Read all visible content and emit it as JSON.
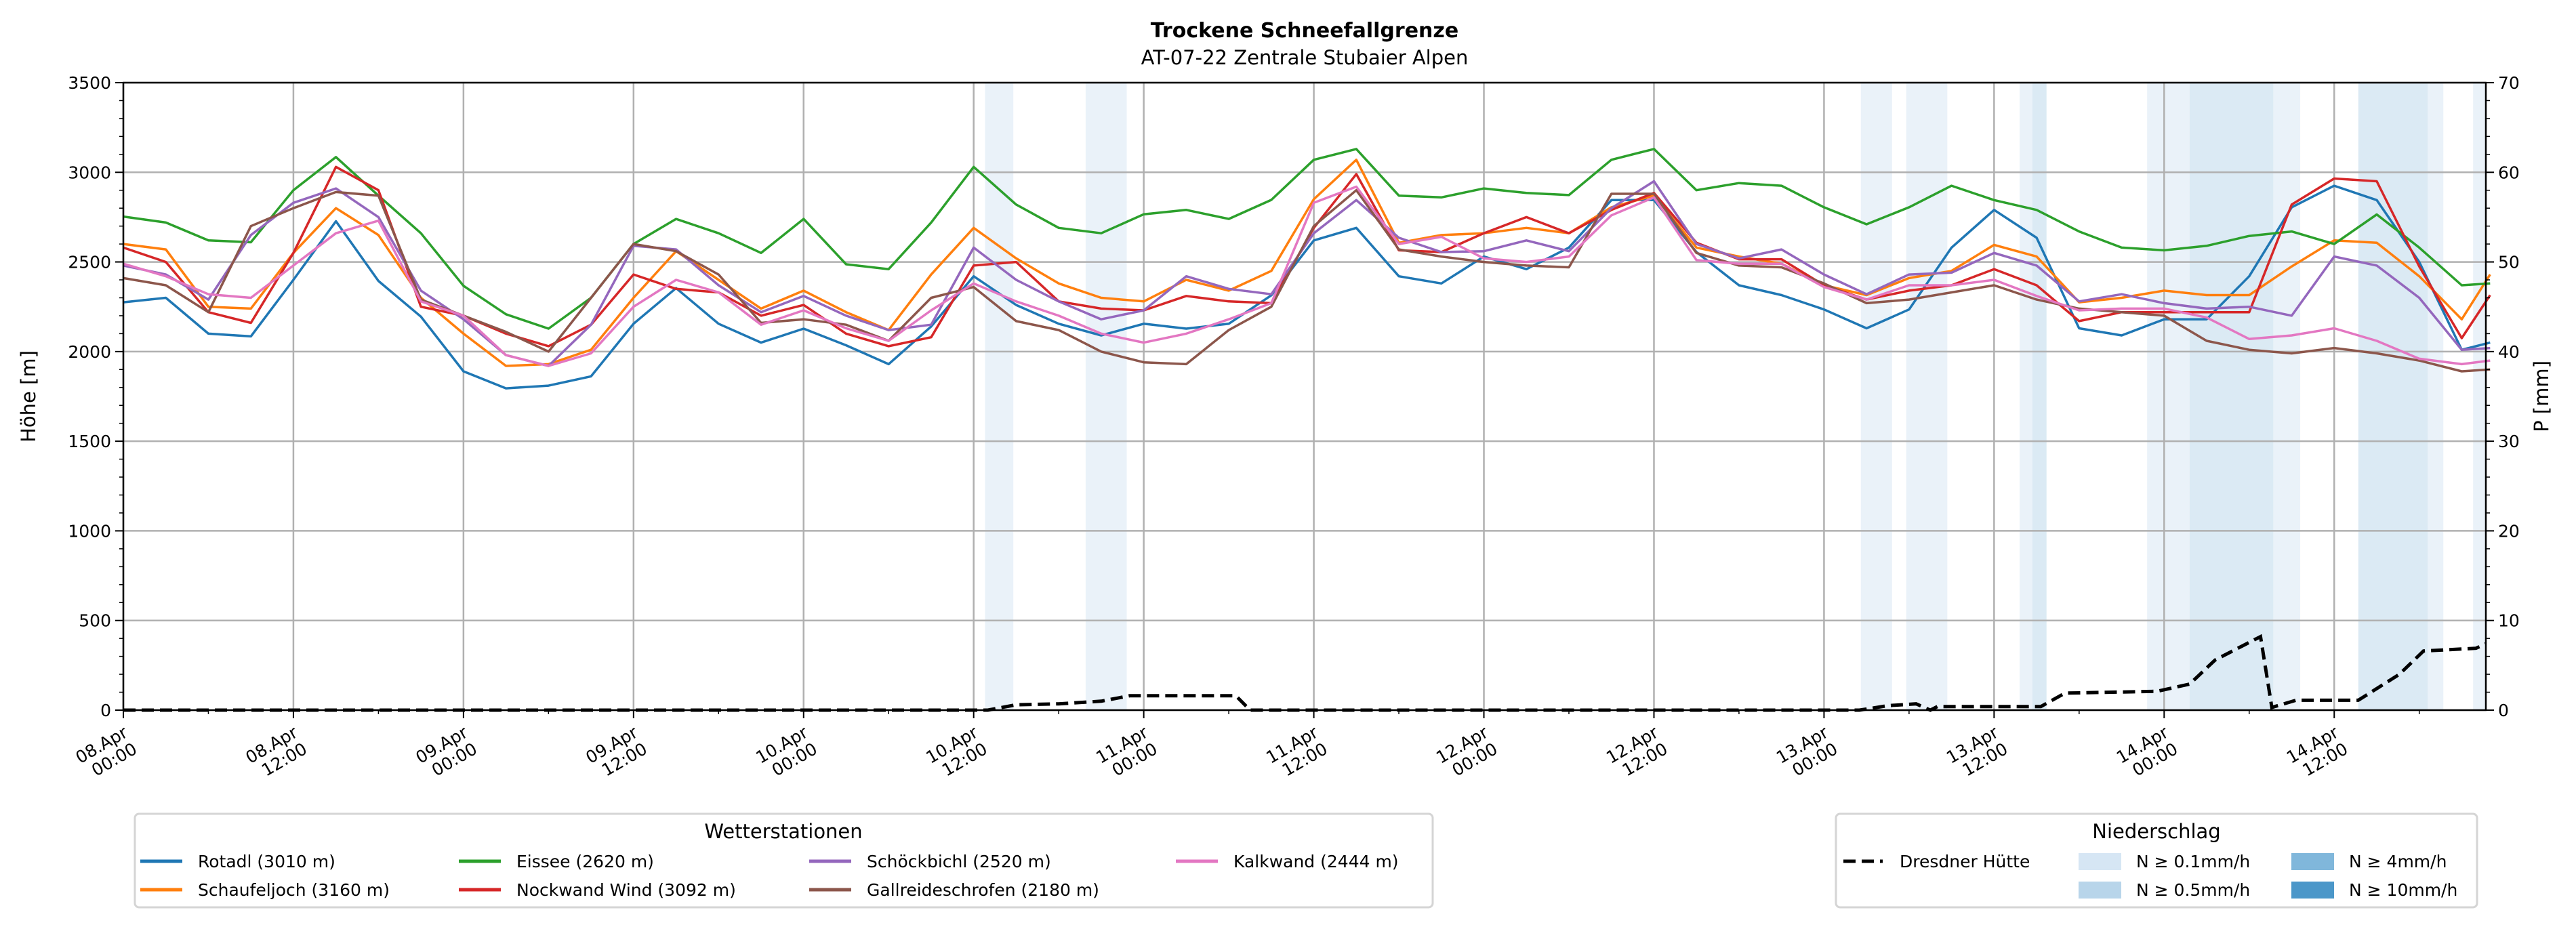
{
  "chart_data": {
    "type": "line",
    "title": "Trockene Schneefallgrenze",
    "subtitle": "AT-07-22 Zentrale Stubaier Alpen",
    "ylabel": "Höhe [m]",
    "ylabel_right": "P [mm]",
    "ylim": [
      0,
      3500
    ],
    "ylim_right": [
      0,
      70
    ],
    "xlim_hours": [
      0,
      166.7
    ],
    "grid": true,
    "yticks": [
      0,
      500,
      1000,
      1500,
      2000,
      2500,
      3000,
      3500
    ],
    "yticks_right": [
      0,
      10,
      20,
      30,
      40,
      50,
      60,
      70
    ],
    "xticks": [
      {
        "hour": 0,
        "date": "08.Apr",
        "time": "00:00"
      },
      {
        "hour": 12,
        "date": "08.Apr",
        "time": "12:00"
      },
      {
        "hour": 24,
        "date": "09.Apr",
        "time": "00:00"
      },
      {
        "hour": 36,
        "date": "09.Apr",
        "time": "12:00"
      },
      {
        "hour": 48,
        "date": "10.Apr",
        "time": "00:00"
      },
      {
        "hour": 60,
        "date": "10.Apr",
        "time": "12:00"
      },
      {
        "hour": 72,
        "date": "11.Apr",
        "time": "00:00"
      },
      {
        "hour": 84,
        "date": "11.Apr",
        "time": "12:00"
      },
      {
        "hour": 96,
        "date": "12.Apr",
        "time": "00:00"
      },
      {
        "hour": 108,
        "date": "12.Apr",
        "time": "12:00"
      },
      {
        "hour": 120,
        "date": "13.Apr",
        "time": "00:00"
      },
      {
        "hour": 132,
        "date": "13.Apr",
        "time": "12:00"
      },
      {
        "hour": 144,
        "date": "14.Apr",
        "time": "00:00"
      },
      {
        "hour": 156,
        "date": "14.Apr",
        "time": "12:00"
      }
    ],
    "x_hours": [
      0,
      3,
      6,
      9,
      12,
      15,
      18,
      21,
      24,
      27,
      30,
      33,
      36,
      39,
      42,
      45,
      48,
      51,
      54,
      57,
      60,
      63,
      66,
      69,
      72,
      75,
      78,
      81,
      84,
      87,
      90,
      93,
      96,
      99,
      102,
      105,
      108,
      111,
      114,
      117,
      120,
      123,
      126,
      129,
      132,
      135,
      138,
      141,
      144,
      147,
      150,
      153,
      156,
      159,
      162,
      165,
      167
    ],
    "series": [
      {
        "name": "Rotadl (3010 m)",
        "color": "#1f77b4",
        "values": [
          2275,
          2300,
          2100,
          2085,
          2400,
          2727,
          2394,
          2195,
          1890,
          1795,
          1810,
          1862,
          2155,
          2354,
          2155,
          2050,
          2128,
          2035,
          1930,
          2140,
          2420,
          2260,
          2155,
          2090,
          2155,
          2128,
          2155,
          2314,
          2620,
          2690,
          2420,
          2380,
          2530,
          2460,
          2580,
          2845,
          2845,
          2555,
          2370,
          2315,
          2235,
          2130,
          2235,
          2580,
          2790,
          2635,
          2130,
          2090,
          2180,
          2180,
          2420,
          2805,
          2925,
          2845,
          2500,
          2010,
          2050
        ]
      },
      {
        "name": "Schaufeljoch (3160 m)",
        "color": "#ff7f0e",
        "values": [
          2600,
          2570,
          2250,
          2240,
          2550,
          2800,
          2650,
          2300,
          2100,
          1920,
          1930,
          2010,
          2300,
          2560,
          2400,
          2240,
          2340,
          2220,
          2120,
          2430,
          2690,
          2520,
          2380,
          2300,
          2280,
          2400,
          2340,
          2450,
          2850,
          3070,
          2607,
          2650,
          2660,
          2690,
          2660,
          2805,
          2870,
          2580,
          2530,
          2490,
          2370,
          2315,
          2410,
          2450,
          2595,
          2530,
          2275,
          2300,
          2340,
          2315,
          2315,
          2475,
          2620,
          2607,
          2420,
          2180,
          2430
        ]
      },
      {
        "name": "Eissee (2620 m)",
        "color": "#2ca02c",
        "values": [
          2753,
          2720,
          2620,
          2610,
          2900,
          3085,
          2870,
          2660,
          2367,
          2208,
          2128,
          2300,
          2600,
          2740,
          2660,
          2550,
          2740,
          2487,
          2460,
          2720,
          3030,
          2820,
          2690,
          2660,
          2766,
          2790,
          2740,
          2846,
          3070,
          3130,
          2870,
          2860,
          2910,
          2885,
          2873,
          3070,
          3130,
          2900,
          2940,
          2925,
          2805,
          2710,
          2805,
          2925,
          2845,
          2790,
          2670,
          2580,
          2565,
          2590,
          2645,
          2670,
          2600,
          2765,
          2580,
          2370,
          2380
        ]
      },
      {
        "name": "Nockwand Wind (3092 m)",
        "color": "#d62728",
        "values": [
          2580,
          2500,
          2220,
          2160,
          2550,
          3030,
          2900,
          2250,
          2200,
          2100,
          2030,
          2150,
          2430,
          2350,
          2330,
          2200,
          2260,
          2100,
          2030,
          2080,
          2480,
          2500,
          2280,
          2240,
          2230,
          2310,
          2280,
          2270,
          2690,
          2990,
          2565,
          2555,
          2660,
          2750,
          2660,
          2790,
          2885,
          2607,
          2515,
          2515,
          2370,
          2290,
          2340,
          2370,
          2460,
          2370,
          2170,
          2220,
          2220,
          2220,
          2220,
          2820,
          2965,
          2950,
          2475,
          2075,
          2315
        ]
      },
      {
        "name": "Schöckbichl (2520 m)",
        "color": "#9467bd",
        "values": [
          2480,
          2430,
          2290,
          2650,
          2830,
          2910,
          2750,
          2340,
          2180,
          1980,
          1920,
          2150,
          2590,
          2570,
          2370,
          2220,
          2310,
          2200,
          2120,
          2150,
          2580,
          2400,
          2280,
          2180,
          2230,
          2420,
          2350,
          2320,
          2660,
          2845,
          2635,
          2555,
          2560,
          2620,
          2560,
          2800,
          2950,
          2600,
          2520,
          2570,
          2430,
          2320,
          2430,
          2440,
          2550,
          2480,
          2280,
          2320,
          2270,
          2240,
          2250,
          2200,
          2530,
          2480,
          2300,
          2010,
          2020
        ]
      },
      {
        "name": "Gallreideschrofen (2180 m)",
        "color": "#8c564b",
        "values": [
          2410,
          2370,
          2220,
          2700,
          2800,
          2890,
          2870,
          2290,
          2200,
          2110,
          2000,
          2300,
          2600,
          2560,
          2430,
          2160,
          2180,
          2150,
          2060,
          2300,
          2360,
          2170,
          2120,
          2000,
          1940,
          1930,
          2120,
          2250,
          2700,
          2900,
          2570,
          2530,
          2500,
          2480,
          2470,
          2880,
          2880,
          2550,
          2480,
          2470,
          2380,
          2270,
          2290,
          2330,
          2370,
          2290,
          2240,
          2220,
          2200,
          2060,
          2010,
          1990,
          2020,
          1990,
          1950,
          1890,
          1900
        ]
      },
      {
        "name": "Kalkwand (2444 m)",
        "color": "#e377c2",
        "values": [
          2490,
          2420,
          2320,
          2300,
          2480,
          2660,
          2730,
          2280,
          2200,
          1980,
          1920,
          1990,
          2250,
          2400,
          2330,
          2150,
          2230,
          2130,
          2060,
          2230,
          2380,
          2280,
          2200,
          2100,
          2050,
          2100,
          2180,
          2270,
          2830,
          2920,
          2600,
          2640,
          2520,
          2500,
          2530,
          2760,
          2860,
          2510,
          2490,
          2490,
          2360,
          2290,
          2370,
          2370,
          2400,
          2310,
          2230,
          2240,
          2240,
          2190,
          2070,
          2090,
          2130,
          2060,
          1960,
          1930,
          1950
        ]
      }
    ],
    "precip": {
      "name": "Dresdner Hütte",
      "axis": "right",
      "color": "#000000",
      "points": [
        [
          0,
          0
        ],
        [
          61,
          0
        ],
        [
          63,
          0.6
        ],
        [
          66,
          0.7
        ],
        [
          69,
          1.0
        ],
        [
          71,
          1.6
        ],
        [
          78.5,
          1.6
        ],
        [
          79.5,
          0
        ],
        [
          122.5,
          0
        ],
        [
          124.5,
          0.5
        ],
        [
          126.5,
          0.7
        ],
        [
          127.5,
          0
        ],
        [
          128,
          0.4
        ],
        [
          135.3,
          0.4
        ],
        [
          137,
          1.9
        ],
        [
          143.5,
          2.1
        ],
        [
          145.8,
          2.9
        ],
        [
          147.6,
          5.6
        ],
        [
          150.8,
          8.2
        ],
        [
          151.6,
          0.3
        ],
        [
          153.3,
          1.1
        ],
        [
          157.7,
          1.1
        ],
        [
          160.6,
          4.0
        ],
        [
          162.3,
          6.6
        ],
        [
          166,
          6.9
        ],
        [
          166.7,
          7.4
        ]
      ]
    },
    "precip_bands": [
      {
        "from": 60.8,
        "to": 62.8,
        "level": 0
      },
      {
        "from": 67.9,
        "to": 70.8,
        "level": 0
      },
      {
        "from": 122.6,
        "to": 124.8,
        "level": 0
      },
      {
        "from": 125.8,
        "to": 128.7,
        "level": 0
      },
      {
        "from": 133.8,
        "to": 134.7,
        "level": 0
      },
      {
        "from": 134.7,
        "to": 135.7,
        "level": 1
      },
      {
        "from": 142.8,
        "to": 145.8,
        "level": 0
      },
      {
        "from": 145.8,
        "to": 151.7,
        "level": 1
      },
      {
        "from": 151.7,
        "to": 153.6,
        "level": 0
      },
      {
        "from": 157.7,
        "to": 162.6,
        "level": 1
      },
      {
        "from": 162.6,
        "to": 163.7,
        "level": 0
      },
      {
        "from": 165.8,
        "to": 166.7,
        "level": 0
      }
    ],
    "legend_stations": {
      "title": "Wetterstationen",
      "placement": "bottom-left"
    },
    "legend_precip": {
      "title": "Niederschlag",
      "placement": "bottom-right",
      "line_label": "Dresdner Hütte",
      "levels": [
        {
          "label": "N ≥ 0.1mm/h",
          "color": "#d6e6f4"
        },
        {
          "label": "N ≥ 0.5mm/h",
          "color": "#b8d5ea"
        },
        {
          "label": "N ≥ 4mm/h",
          "color": "#80b7db"
        },
        {
          "label": "N ≥ 10mm/h",
          "color": "#4b97c9"
        }
      ]
    }
  }
}
